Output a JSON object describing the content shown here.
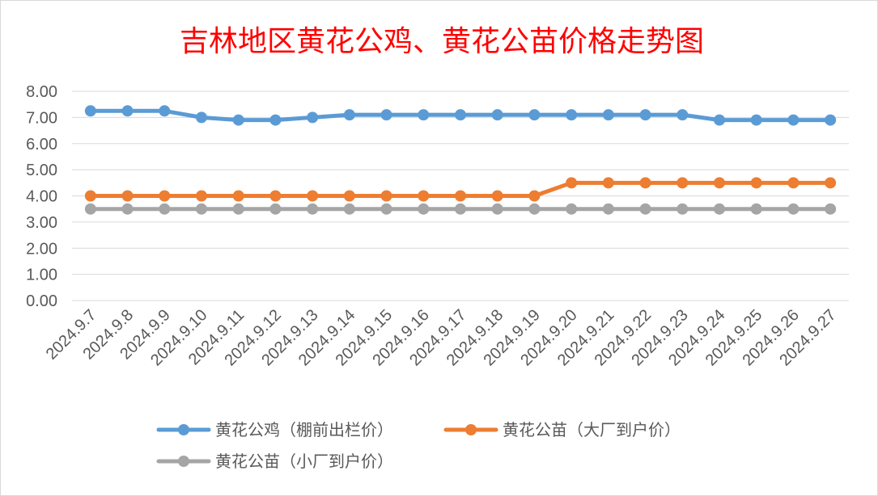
{
  "chart_data": {
    "type": "line",
    "title": "吉林地区黄花公鸡、黄花公苗价格走势图",
    "categories": [
      "2024.9.7",
      "2024.9.8",
      "2024.9.9",
      "2024.9.10",
      "2024.9.11",
      "2024.9.12",
      "2024.9.13",
      "2024.9.14",
      "2024.9.15",
      "2024.9.16",
      "2024.9.17",
      "2024.9.18",
      "2024.9.19",
      "2024.9.20",
      "2024.9.21",
      "2024.9.22",
      "2024.9.23",
      "2024.9.24",
      "2024.9.25",
      "2024.9.26",
      "2024.9.27"
    ],
    "ylim": [
      0,
      8
    ],
    "yticks": [
      "0.00",
      "1.00",
      "2.00",
      "3.00",
      "4.00",
      "5.00",
      "6.00",
      "7.00",
      "8.00"
    ],
    "grid": true,
    "legend_position": "bottom",
    "series": [
      {
        "name": "黄花公鸡（棚前出栏价）",
        "color": "#5b9bd5",
        "values": [
          7.25,
          7.25,
          7.25,
          7.0,
          6.9,
          6.9,
          7.0,
          7.1,
          7.1,
          7.1,
          7.1,
          7.1,
          7.1,
          7.1,
          7.1,
          7.1,
          7.1,
          6.9,
          6.9,
          6.9,
          6.9
        ]
      },
      {
        "name": "黄花公苗（大厂到户价）",
        "color": "#ed7d31",
        "values": [
          4.0,
          4.0,
          4.0,
          4.0,
          4.0,
          4.0,
          4.0,
          4.0,
          4.0,
          4.0,
          4.0,
          4.0,
          4.0,
          4.5,
          4.5,
          4.5,
          4.5,
          4.5,
          4.5,
          4.5,
          4.5
        ]
      },
      {
        "name": "黄花公苗（小厂到户价）",
        "color": "#a5a5a5",
        "values": [
          3.5,
          3.5,
          3.5,
          3.5,
          3.5,
          3.5,
          3.5,
          3.5,
          3.5,
          3.5,
          3.5,
          3.5,
          3.5,
          3.5,
          3.5,
          3.5,
          3.5,
          3.5,
          3.5,
          3.5,
          3.5
        ]
      }
    ]
  }
}
